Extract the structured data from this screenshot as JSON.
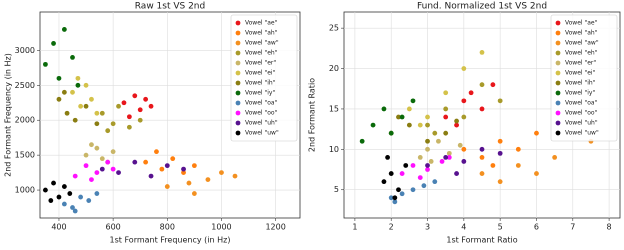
{
  "chart_data": [
    {
      "type": "scatter",
      "title": "Raw 1st VS 2nd",
      "x_label": "1st Formant Frequency (in Hz)",
      "y_label": "2nd Formant Frequency (in Hz)",
      "xlim": [
        330,
        1290
      ],
      "ylim": [
        600,
        3550
      ],
      "xticks": [
        400,
        600,
        800,
        1000,
        1200
      ],
      "yticks": [
        1000,
        1500,
        2000,
        2500,
        3000
      ],
      "grid": true,
      "legend": "upper right",
      "series": [
        {
          "name": "Vowel \"ae\"",
          "color": "#e8161b",
          "x": [
            640,
            680,
            700,
            720,
            660,
            740
          ],
          "y": [
            2250,
            2350,
            2150,
            2300,
            2050,
            2200
          ]
        },
        {
          "name": "Vowel \"ah\"",
          "color": "#ff7f0e",
          "x": [
            720,
            780,
            820,
            860,
            900,
            760
          ],
          "y": [
            1400,
            1300,
            1450,
            1250,
            1350,
            1550
          ]
        },
        {
          "name": "Vowel \"aw\"",
          "color": "#f39020",
          "x": [
            800,
            880,
            950,
            1000,
            1050,
            900
          ],
          "y": [
            1050,
            1100,
            1150,
            1250,
            1200,
            950
          ]
        },
        {
          "name": "Vowel \"eh\"",
          "color": "#a89a2a",
          "x": [
            560,
            600,
            620,
            660,
            700,
            580
          ],
          "y": [
            2100,
            1950,
            2200,
            1900,
            2000,
            1850
          ]
        },
        {
          "name": "Vowel \"er\"",
          "color": "#c9b668",
          "x": [
            500,
            540,
            560,
            600,
            520,
            580
          ],
          "y": [
            1500,
            1600,
            1450,
            1550,
            1650,
            1400
          ]
        },
        {
          "name": "Vowel \"ei\"",
          "color": "#d4c24a",
          "x": [
            450,
            480,
            500,
            520,
            540,
            470
          ],
          "y": [
            2400,
            2200,
            2500,
            2300,
            2100,
            2600
          ]
        },
        {
          "name": "Vowel \"ih\"",
          "color": "#8a7d12",
          "x": [
            400,
            430,
            460,
            500,
            420,
            540
          ],
          "y": [
            2300,
            2100,
            2000,
            2200,
            2400,
            1950
          ]
        },
        {
          "name": "Vowel \"iy\"",
          "color": "#0a6a0a",
          "x": [
            350,
            380,
            400,
            420,
            450,
            470
          ],
          "y": [
            2800,
            3100,
            2600,
            3300,
            2900,
            2500
          ]
        },
        {
          "name": "Vowel \"oa\"",
          "color": "#4a82b4",
          "x": [
            420,
            450,
            480,
            510,
            540,
            460
          ],
          "y": [
            800,
            750,
            900,
            850,
            950,
            700
          ]
        },
        {
          "name": "Vowel \"oo\"",
          "color": "#ff10ff",
          "x": [
            460,
            500,
            540,
            580,
            520,
            600
          ],
          "y": [
            1200,
            1350,
            1250,
            1400,
            1150,
            1300
          ]
        },
        {
          "name": "Vowel \"uh\"",
          "color": "#57128f",
          "x": [
            560,
            620,
            680,
            740,
            800,
            860
          ],
          "y": [
            1300,
            1250,
            1400,
            1200,
            1350,
            1300
          ]
        },
        {
          "name": "Vowel \"uw\"",
          "color": "#000000",
          "x": [
            350,
            380,
            400,
            420,
            440,
            370
          ],
          "y": [
            1000,
            1100,
            900,
            1050,
            950,
            850
          ]
        }
      ]
    },
    {
      "type": "scatter",
      "title": "Fund. Normalized 1st VS 2nd",
      "x_label": "1st Formant Ratio",
      "y_label": "2nd Formant Ratio",
      "xlim": [
        0.7,
        8.3
      ],
      "ylim": [
        1.5,
        27
      ],
      "xticks": [
        1,
        2,
        3,
        4,
        5,
        6,
        7,
        8
      ],
      "yticks": [
        5,
        10,
        15,
        20,
        25
      ],
      "grid": true,
      "legend": "upper right",
      "series": [
        {
          "name": "Vowel \"ae\"",
          "color": "#e8161b",
          "x": [
            3.5,
            4,
            4.2,
            4.5,
            3.8,
            4.8
          ],
          "y": [
            14,
            16,
            17,
            15,
            13,
            18
          ]
        },
        {
          "name": "Vowel \"ah\"",
          "color": "#ff7f0e",
          "x": [
            4,
            4.5,
            5,
            5.5,
            6,
            4.8
          ],
          "y": [
            10,
            9,
            11,
            10,
            12,
            8
          ]
        },
        {
          "name": "Vowel \"aw\"",
          "color": "#f39020",
          "x": [
            4.5,
            5.5,
            6.5,
            7.5,
            5,
            6
          ],
          "y": [
            7,
            8,
            9,
            11,
            6,
            7
          ]
        },
        {
          "name": "Vowel \"eh\"",
          "color": "#a89a2a",
          "x": [
            3,
            3.5,
            4,
            4.5,
            5,
            3.2
          ],
          "y": [
            13,
            15,
            14,
            18,
            16,
            12
          ]
        },
        {
          "name": "Vowel \"er\"",
          "color": "#c9b668",
          "x": [
            2.8,
            3,
            3.3,
            3.6,
            3.9,
            3.1
          ],
          "y": [
            9,
            10,
            11,
            9.5,
            10.5,
            8.5
          ]
        },
        {
          "name": "Vowel \"ei\"",
          "color": "#d4c24a",
          "x": [
            2.5,
            3,
            3.5,
            4,
            4.5,
            2.8
          ],
          "y": [
            15,
            14,
            17,
            20,
            22,
            13
          ]
        },
        {
          "name": "Vowel \"ih\"",
          "color": "#8a7d12",
          "x": [
            2,
            2.5,
            3,
            3.5,
            2.2,
            3.8
          ],
          "y": [
            12,
            13,
            11,
            12,
            14,
            13.5
          ]
        },
        {
          "name": "Vowel \"iy\"",
          "color": "#0a6a0a",
          "x": [
            1.5,
            1.8,
            2,
            2.3,
            1.2,
            2.6
          ],
          "y": [
            13,
            15,
            12,
            14,
            11,
            16
          ]
        },
        {
          "name": "Vowel \"oa\"",
          "color": "#4a82b4",
          "x": [
            2,
            2.3,
            2.6,
            2.9,
            2.1,
            3.2
          ],
          "y": [
            4,
            4.5,
            5,
            5.5,
            3.5,
            6
          ]
        },
        {
          "name": "Vowel \"oo\"",
          "color": "#ff10ff",
          "x": [
            2.3,
            2.6,
            3,
            3.4,
            2.8,
            3.6
          ],
          "y": [
            7,
            8,
            7.5,
            8.5,
            6.5,
            9
          ]
        },
        {
          "name": "Vowel \"uh\"",
          "color": "#57128f",
          "x": [
            3,
            3.5,
            4,
            4.5,
            5,
            3.8
          ],
          "y": [
            8,
            9,
            8.5,
            10,
            9.5,
            7
          ]
        },
        {
          "name": "Vowel \"uw\"",
          "color": "#000000",
          "x": [
            1.8,
            2,
            2.2,
            2.4,
            1.9,
            2.1
          ],
          "y": [
            6,
            7,
            5,
            8,
            9,
            4
          ]
        }
      ]
    }
  ]
}
